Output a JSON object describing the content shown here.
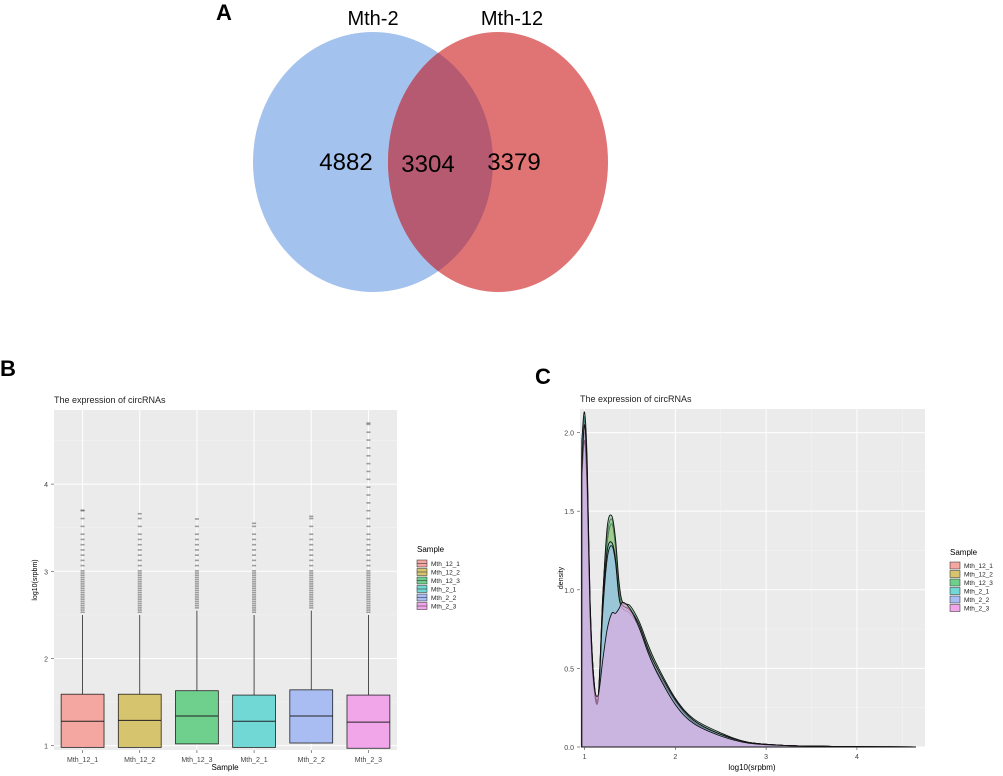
{
  "panels": {
    "a": "A",
    "b": "B",
    "c": "C"
  },
  "chart_data": [
    {
      "type": "venn",
      "sets": [
        {
          "name": "Mth-2",
          "only": 4882,
          "color": "#a4c2ee"
        },
        {
          "name": "Mth-12",
          "only": 3379,
          "color": "#e07475"
        }
      ],
      "intersection": 3304,
      "intersection_color": "#b55a70"
    },
    {
      "type": "box",
      "title": "The expression of circRNAs",
      "xlabel": "Sample",
      "ylabel": "log10(srpbm)",
      "ylim": [
        0.95,
        4.85
      ],
      "yticks": [
        1,
        2,
        3,
        4
      ],
      "legend_title": "Sample",
      "groups": [
        {
          "name": "Mth_12_1",
          "color": "#f4a6a1",
          "q1": 0.98,
          "median": 1.28,
          "q3": 1.59,
          "whisker_low": 0.98,
          "whisker_high": 2.5,
          "outlier_max": 3.7
        },
        {
          "name": "Mth_12_2",
          "color": "#d6c56e",
          "q1": 0.98,
          "median": 1.29,
          "q3": 1.59,
          "whisker_low": 0.98,
          "whisker_high": 2.5,
          "outlier_max": 3.66
        },
        {
          "name": "Mth_12_3",
          "color": "#6fcf8d",
          "q1": 1.02,
          "median": 1.34,
          "q3": 1.63,
          "whisker_low": 1.02,
          "whisker_high": 2.55,
          "outlier_max": 3.6
        },
        {
          "name": "Mth_2_1",
          "color": "#72d8d6",
          "q1": 0.98,
          "median": 1.28,
          "q3": 1.58,
          "whisker_low": 0.98,
          "whisker_high": 2.5,
          "outlier_max": 3.55
        },
        {
          "name": "Mth_2_2",
          "color": "#a9bdf3",
          "q1": 1.03,
          "median": 1.34,
          "q3": 1.64,
          "whisker_low": 1.03,
          "whisker_high": 2.55,
          "outlier_max": 3.63
        },
        {
          "name": "Mth_2_3",
          "color": "#f2a6ea",
          "q1": 0.97,
          "median": 1.27,
          "q3": 1.58,
          "whisker_low": 0.97,
          "whisker_high": 2.5,
          "outlier_max": 4.7
        }
      ]
    },
    {
      "type": "area",
      "title": "The expression of circRNAs",
      "xlabel": "log10(srpbm)",
      "ylabel": "density",
      "xlim": [
        0.95,
        4.75
      ],
      "ylim": [
        0,
        2.15
      ],
      "xticks": [
        1,
        2,
        3,
        4
      ],
      "yticks": [
        0.0,
        0.5,
        1.0,
        1.5,
        2.0
      ],
      "ytick_labels": [
        "0.0",
        "0.5",
        "1.0",
        "1.5",
        "2.0"
      ],
      "legend_title": "Sample",
      "series": [
        {
          "name": "Mth_12_1",
          "color": "#f4a6a1",
          "x": [
            0.97,
            1.0,
            1.03,
            1.06,
            1.1,
            1.15,
            1.2,
            1.25,
            1.3,
            1.34,
            1.38,
            1.42,
            1.5,
            1.6,
            1.7,
            1.8,
            2.0,
            2.2,
            2.5,
            2.8,
            3.2,
            3.6,
            4.0,
            4.65
          ],
          "y": [
            1.9,
            2.1,
            1.75,
            0.95,
            0.45,
            0.3,
            0.95,
            1.35,
            1.45,
            1.3,
            1.0,
            0.9,
            0.88,
            0.78,
            0.62,
            0.5,
            0.3,
            0.17,
            0.08,
            0.03,
            0.01,
            0.005,
            0.002,
            0.0
          ]
        },
        {
          "name": "Mth_12_2",
          "color": "#d6c56e",
          "x": [
            0.97,
            1.0,
            1.03,
            1.06,
            1.1,
            1.15,
            1.2,
            1.25,
            1.3,
            1.34,
            1.38,
            1.42,
            1.5,
            1.6,
            1.7,
            1.8,
            2.0,
            2.2,
            2.5,
            2.8,
            3.2,
            3.6,
            4.0,
            4.65
          ],
          "y": [
            1.85,
            2.08,
            1.7,
            0.9,
            0.42,
            0.3,
            0.9,
            1.3,
            1.42,
            1.28,
            1.0,
            0.9,
            0.88,
            0.78,
            0.63,
            0.5,
            0.3,
            0.17,
            0.08,
            0.03,
            0.01,
            0.005,
            0.002,
            0.0
          ]
        },
        {
          "name": "Mth_12_3",
          "color": "#6fcf8d",
          "x": [
            0.97,
            1.0,
            1.03,
            1.06,
            1.1,
            1.15,
            1.2,
            1.25,
            1.3,
            1.34,
            1.38,
            1.42,
            1.5,
            1.6,
            1.7,
            1.8,
            2.0,
            2.2,
            2.5,
            2.8,
            3.2,
            3.6,
            4.0,
            4.65
          ],
          "y": [
            1.8,
            2.0,
            1.65,
            0.9,
            0.45,
            0.32,
            0.95,
            1.4,
            1.47,
            1.33,
            1.05,
            0.92,
            0.9,
            0.8,
            0.65,
            0.52,
            0.31,
            0.18,
            0.09,
            0.03,
            0.01,
            0.005,
            0.002,
            0.0
          ]
        },
        {
          "name": "Mth_2_1",
          "color": "#72d8d6",
          "x": [
            0.97,
            1.0,
            1.03,
            1.06,
            1.1,
            1.15,
            1.2,
            1.25,
            1.3,
            1.34,
            1.38,
            1.42,
            1.5,
            1.6,
            1.7,
            1.8,
            2.0,
            2.2,
            2.5,
            2.8,
            3.2,
            3.6,
            4.0,
            4.65
          ],
          "y": [
            1.95,
            2.13,
            1.8,
            0.95,
            0.45,
            0.3,
            0.9,
            1.25,
            1.3,
            1.2,
            0.95,
            0.88,
            0.85,
            0.76,
            0.6,
            0.48,
            0.29,
            0.16,
            0.08,
            0.03,
            0.01,
            0.005,
            0.002,
            0.0
          ]
        },
        {
          "name": "Mth_2_2",
          "color": "#a9bdf3",
          "x": [
            0.97,
            1.0,
            1.03,
            1.06,
            1.1,
            1.15,
            1.2,
            1.25,
            1.3,
            1.34,
            1.38,
            1.42,
            1.5,
            1.6,
            1.7,
            1.8,
            2.0,
            2.2,
            2.5,
            2.8,
            3.2,
            3.6,
            4.0,
            4.65
          ],
          "y": [
            1.7,
            1.95,
            1.6,
            0.85,
            0.4,
            0.3,
            0.85,
            1.2,
            1.28,
            1.18,
            0.95,
            0.9,
            0.87,
            0.78,
            0.62,
            0.5,
            0.3,
            0.17,
            0.08,
            0.03,
            0.01,
            0.005,
            0.002,
            0.0
          ]
        },
        {
          "name": "Mth_2_3",
          "color": "#f2a6ea",
          "x": [
            0.97,
            1.0,
            1.03,
            1.06,
            1.1,
            1.15,
            1.2,
            1.25,
            1.3,
            1.34,
            1.38,
            1.42,
            1.5,
            1.6,
            1.7,
            1.8,
            2.0,
            2.2,
            2.5,
            2.8,
            3.2,
            3.6,
            4.0,
            4.65
          ],
          "y": [
            1.75,
            2.05,
            1.7,
            0.9,
            0.42,
            0.33,
            0.55,
            0.75,
            0.85,
            0.85,
            0.88,
            0.92,
            0.88,
            0.76,
            0.6,
            0.47,
            0.27,
            0.15,
            0.07,
            0.025,
            0.01,
            0.005,
            0.002,
            0.0
          ]
        }
      ]
    }
  ]
}
